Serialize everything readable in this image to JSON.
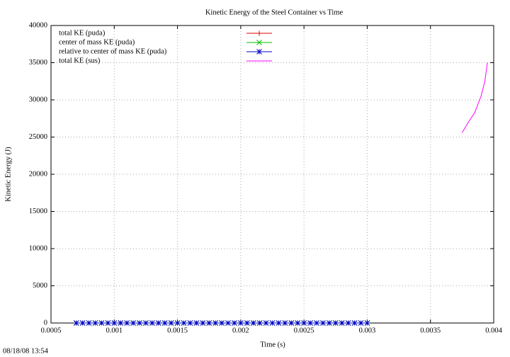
{
  "chart_data": {
    "type": "line",
    "title": "Kinetic Energy of the Steel Container vs Time",
    "xlabel": "Time (s)",
    "ylabel": "Kinetic Energy (J)",
    "timestamp": "08/18/08 13:54",
    "xlim": [
      0.0005,
      0.004
    ],
    "ylim": [
      0,
      40000
    ],
    "xticks": [
      0.0005,
      0.001,
      0.0015,
      0.002,
      0.0025,
      0.003,
      0.0035,
      0.004
    ],
    "yticks": [
      0,
      5000,
      10000,
      15000,
      20000,
      25000,
      30000,
      35000,
      40000
    ],
    "grid": true,
    "legend": "top-left",
    "x": [
      0.0007,
      0.00075,
      0.0008,
      0.00085,
      0.0009,
      0.00095,
      0.001,
      0.00105,
      0.0011,
      0.00115,
      0.0012,
      0.00125,
      0.0013,
      0.00135,
      0.0014,
      0.00145,
      0.0015,
      0.00155,
      0.0016,
      0.00165,
      0.0017,
      0.00175,
      0.0018,
      0.00185,
      0.0019,
      0.00195,
      0.002,
      0.00205,
      0.0021,
      0.00215,
      0.0022,
      0.00225,
      0.0023,
      0.00235,
      0.0024,
      0.00245,
      0.0025,
      0.00255,
      0.0026,
      0.00265,
      0.0027,
      0.00275,
      0.0028,
      0.00285,
      0.0029,
      0.00295,
      0.003
    ],
    "series": [
      {
        "name": "total KE (puda)",
        "color": "#e00000",
        "marker": "plus",
        "values": [
          0,
          0,
          0,
          0,
          0,
          0,
          0,
          0,
          0,
          0,
          0,
          0,
          0,
          0,
          0,
          0,
          0,
          0,
          0,
          0,
          0,
          0,
          0,
          0,
          0,
          0,
          0,
          0,
          0,
          0,
          0,
          0,
          0,
          0,
          0,
          0,
          0,
          0,
          0,
          0,
          0,
          0,
          0,
          0,
          0,
          0,
          0
        ]
      },
      {
        "name": "center of mass KE (puda)",
        "color": "#00c000",
        "marker": "cross",
        "values": [
          0,
          0,
          0,
          0,
          0,
          0,
          0,
          0,
          0,
          0,
          0,
          0,
          0,
          0,
          0,
          0,
          0,
          0,
          0,
          0,
          0,
          0,
          0,
          0,
          0,
          0,
          0,
          0,
          0,
          0,
          0,
          0,
          0,
          0,
          0,
          0,
          0,
          0,
          0,
          0,
          0,
          0,
          0,
          0,
          0,
          0,
          0
        ]
      },
      {
        "name": "relative to center of mass KE (puda)",
        "color": "#0000cc",
        "marker": "star",
        "values": [
          0,
          0,
          0,
          0,
          0,
          0,
          0,
          0,
          0,
          0,
          0,
          0,
          0,
          0,
          0,
          0,
          0,
          0,
          0,
          0,
          0,
          0,
          0,
          0,
          0,
          0,
          0,
          0,
          0,
          0,
          0,
          0,
          0,
          0,
          0,
          0,
          0,
          0,
          0,
          0,
          0,
          0,
          0,
          0,
          0,
          0,
          0
        ]
      },
      {
        "name": "total KE (sus)",
        "color": "#ff00ff",
        "x": [
          0.00375,
          0.0038,
          0.00385,
          0.0039,
          0.00393,
          0.00395
        ],
        "values": [
          25600,
          27000,
          28300,
          30500,
          32500,
          35000
        ]
      }
    ]
  }
}
